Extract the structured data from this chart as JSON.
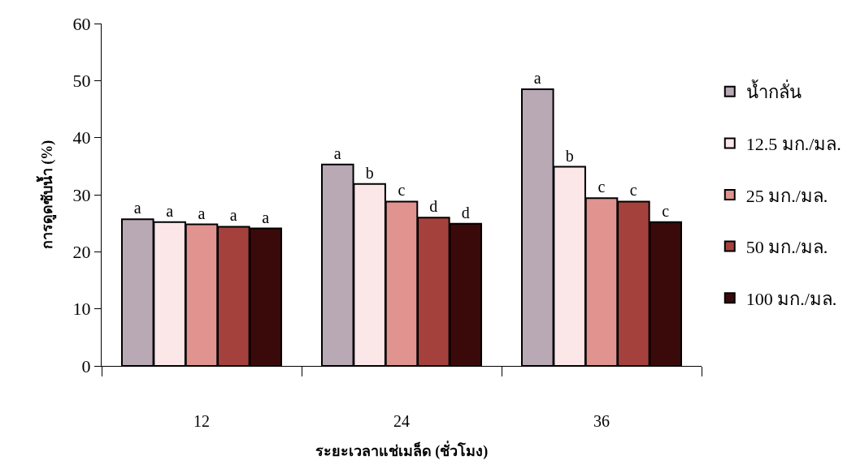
{
  "chart_data": {
    "type": "bar",
    "xlabel": "ระยะเวลาแช่เมล็ด (ชั่วโมง)",
    "ylabel": "การดูดซับน้ำ (%)",
    "categories": [
      "12",
      "24",
      "36"
    ],
    "series": [
      {
        "name": "น้ำกลั่น",
        "color": "#b8a9b5",
        "values": [
          25.7,
          35.3,
          48.5
        ],
        "value_labels": [
          "a",
          "a",
          "a"
        ]
      },
      {
        "name": "12.5 มก./มล.",
        "color": "#fbe6e8",
        "values": [
          25.2,
          31.9,
          34.9
        ],
        "value_labels": [
          "a",
          "b",
          "b"
        ]
      },
      {
        "name": "25 มก./มล.",
        "color": "#e0938f",
        "values": [
          24.8,
          28.8,
          29.4
        ],
        "value_labels": [
          "a",
          "c",
          "c"
        ]
      },
      {
        "name": "50 มก./มล.",
        "color": "#a5413d",
        "values": [
          24.4,
          26.0,
          28.8
        ],
        "value_labels": [
          "a",
          "d",
          "c"
        ]
      },
      {
        "name": "100 มก./มล.",
        "color": "#3a0a0a",
        "values": [
          24.1,
          24.9,
          25.2
        ],
        "value_labels": [
          "a",
          "d",
          "c"
        ]
      }
    ],
    "ylim": [
      0,
      60
    ],
    "yticks": [
      0,
      10,
      20,
      30,
      40,
      50,
      60
    ],
    "grid": false,
    "legend": "right"
  }
}
